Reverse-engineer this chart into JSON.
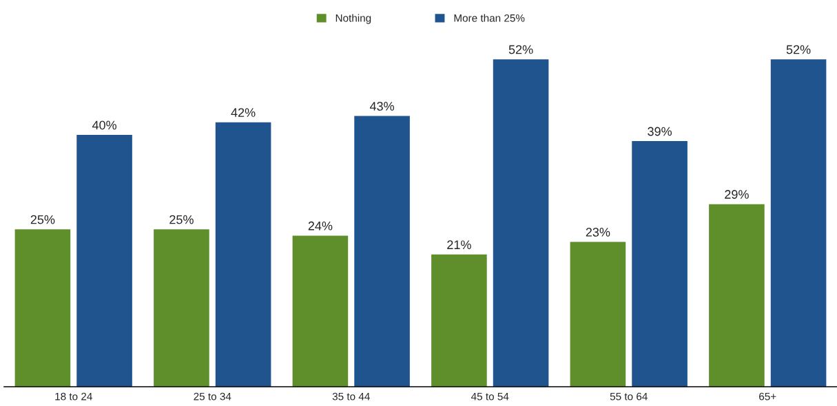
{
  "chart_data": {
    "type": "bar",
    "categories": [
      "18 to 24",
      "25 to 34",
      "35 to 44",
      "45 to 54",
      "55 to 64",
      "65+"
    ],
    "series": [
      {
        "name": "Nothing",
        "color": "#5f8f2a",
        "values": [
          25,
          25,
          24,
          21,
          23,
          29
        ],
        "value_labels": [
          "25%",
          "25%",
          "24%",
          "21%",
          "23%",
          "29%"
        ]
      },
      {
        "name": "More than 25%",
        "color": "#1f548e",
        "values": [
          40,
          42,
          43,
          52,
          39,
          52
        ],
        "value_labels": [
          "40%",
          "42%",
          "43%",
          "52%",
          "39%",
          "52%"
        ]
      }
    ],
    "legend": "top",
    "grid": false
  }
}
